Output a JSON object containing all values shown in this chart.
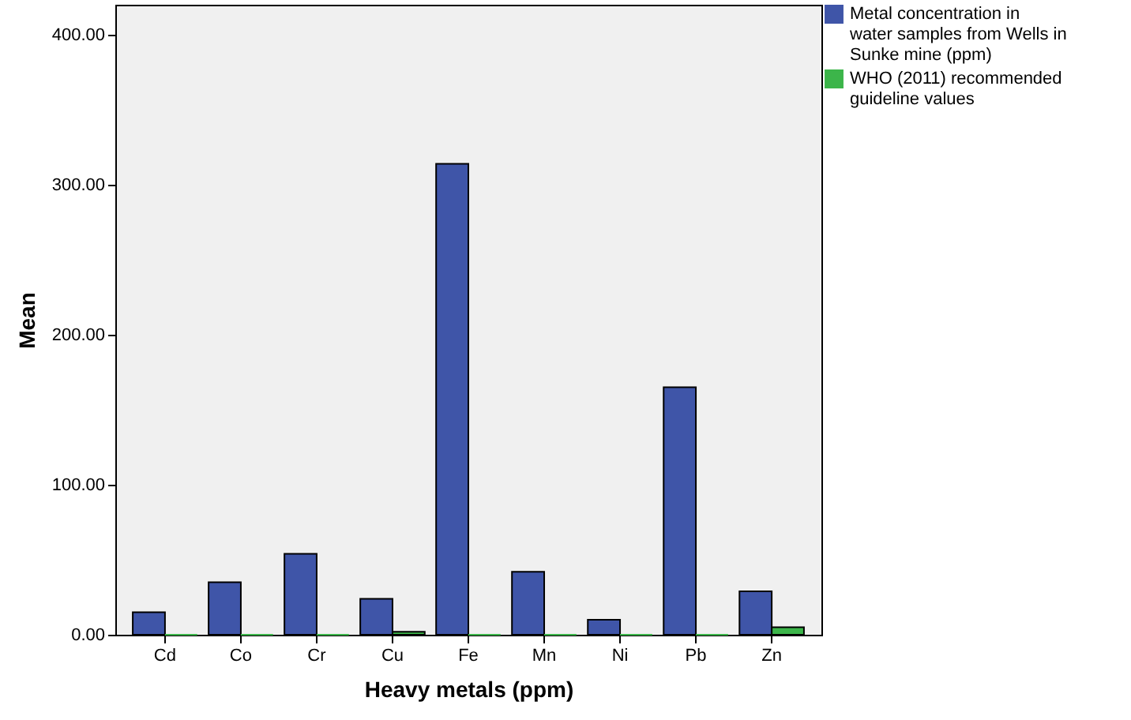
{
  "chart_data": {
    "type": "bar",
    "xlabel": "Heavy metals (ppm)",
    "ylabel": "Mean",
    "categories": [
      "Cd",
      "Co",
      "Cr",
      "Cu",
      "Fe",
      "Mn",
      "Ni",
      "Pb",
      "Zn"
    ],
    "series": [
      {
        "name": "Metal concentration in water samples from Wells in Sunke mine (ppm)",
        "color": "#3f55a8",
        "values": [
          15,
          35,
          54,
          24,
          314,
          42,
          10,
          165,
          29
        ]
      },
      {
        "name": "WHO (2011) recommended guideline values",
        "color": "#3cb54a",
        "values": [
          0,
          0,
          0,
          2,
          0,
          0,
          0,
          0,
          5
        ]
      }
    ],
    "ylim": [
      0,
      420
    ],
    "yticks": [
      {
        "value": 0,
        "label": "0.00"
      },
      {
        "value": 100,
        "label": "100.00"
      },
      {
        "value": 200,
        "label": "200.00"
      },
      {
        "value": 300,
        "label": "300.00"
      },
      {
        "value": 400,
        "label": "400.00"
      }
    ],
    "legend": "top right"
  }
}
